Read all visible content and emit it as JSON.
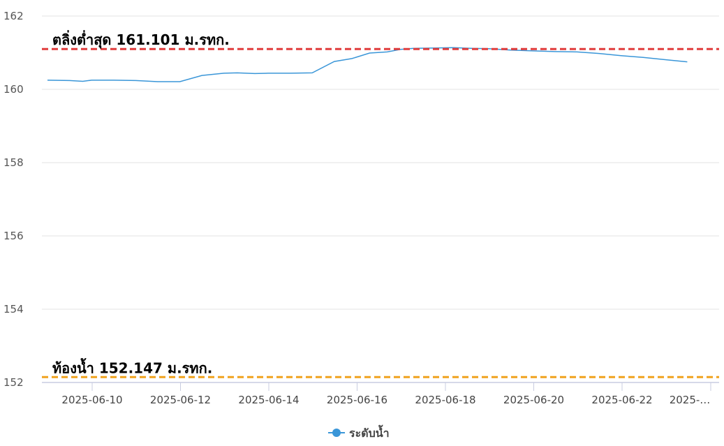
{
  "chart_data": {
    "type": "line",
    "title": "",
    "xlabel": "",
    "ylabel": "",
    "ylim": [
      152,
      162
    ],
    "yticks": [
      "162",
      "160",
      "158",
      "156",
      "154",
      "152"
    ],
    "xticks": [
      "2025-06-10",
      "2025-06-12",
      "2025-06-14",
      "2025-06-16",
      "2025-06-18",
      "2025-06-20",
      "2025-06-22",
      "2025-…"
    ],
    "grid": true,
    "legend": {
      "position": "bottom-center",
      "label": "ระดับน้ำ"
    },
    "series": [
      {
        "name": "ระดับน้ำ",
        "color": "#3a96d8",
        "x": [
          0.0,
          0.5,
          0.8,
          1.0,
          1.5,
          2.0,
          2.5,
          3.0,
          3.5,
          4.0,
          4.3,
          4.7,
          5.0,
          5.5,
          6.0,
          6.5,
          6.9,
          7.3,
          7.7,
          8.0,
          8.3,
          8.8,
          9.2,
          9.6,
          10.0,
          10.5,
          11.0,
          11.5,
          12.0,
          12.5,
          13.0,
          13.5,
          14.0,
          14.5
        ],
        "y": [
          160.25,
          160.24,
          160.22,
          160.25,
          160.25,
          160.24,
          160.21,
          160.21,
          160.38,
          160.44,
          160.45,
          160.43,
          160.44,
          160.44,
          160.45,
          160.76,
          160.84,
          160.99,
          161.02,
          161.09,
          161.12,
          161.13,
          161.14,
          161.12,
          161.11,
          161.07,
          161.05,
          161.03,
          161.02,
          160.98,
          160.92,
          160.87,
          160.81,
          160.75
        ]
      }
    ],
    "reference_lines": [
      {
        "value": 161.101,
        "label": "ตลิ่งต่ำสุด 161.101 ม.รทก.",
        "color": "#e03c3c",
        "style": "dashed"
      },
      {
        "value": 152.147,
        "label": "ท้องน้ำ 152.147 ม.รทก.",
        "color": "#f0a21e",
        "style": "dashed"
      }
    ]
  }
}
